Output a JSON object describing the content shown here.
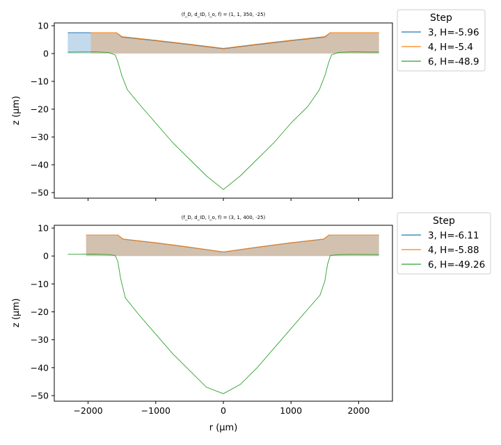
{
  "chart_data": [
    {
      "type": "line",
      "title": "(f_D, d_ID, l_o, f) = (1, 1, 350, -25)",
      "xlabel": "",
      "ylabel": "z (μm)",
      "xlim": [
        -2500,
        2500
      ],
      "ylim": [
        -52,
        11
      ],
      "xticks": [
        -2000,
        -1000,
        0,
        1000,
        2000
      ],
      "yticks": [
        10,
        0,
        -10,
        -20,
        -30,
        -40,
        -50
      ],
      "xtick_labels_visible": false,
      "grid": false,
      "legend": {
        "title": "Step",
        "placement": "outside-right-top"
      },
      "series": [
        {
          "name": "3, H=-5.96",
          "color": "#1f77b4",
          "filled": true,
          "x": [
            -2300,
            -1580,
            -1500,
            -1000,
            -500,
            0,
            500,
            1000,
            1500,
            1580,
            2300
          ],
          "y": [
            7.5,
            7.5,
            5.9,
            4.6,
            3.2,
            1.7,
            3.2,
            4.6,
            5.9,
            7.5,
            7.5
          ]
        },
        {
          "name": "4, H=-5.4",
          "color": "#ff7f0e",
          "filled": true,
          "x": [
            -1960,
            -1580,
            -1500,
            -1000,
            -500,
            0,
            500,
            1000,
            1500,
            1580,
            2300
          ],
          "y": [
            7.5,
            7.5,
            6.1,
            4.8,
            3.4,
            1.9,
            3.4,
            4.8,
            6.1,
            7.5,
            7.5
          ]
        },
        {
          "name": "6, H=-48.9",
          "color": "#2ca02c",
          "filled": false,
          "x": [
            -2300,
            -1900,
            -1700,
            -1600,
            -1560,
            -1500,
            -1420,
            -1250,
            -1000,
            -750,
            -500,
            -250,
            0,
            250,
            500,
            750,
            1000,
            1250,
            1420,
            1500,
            1560,
            1600,
            1700,
            1900,
            2300
          ],
          "y": [
            0.5,
            0.6,
            0.4,
            -0.5,
            -3,
            -8,
            -13,
            -18,
            -25,
            -32,
            -38,
            -44,
            -48.9,
            -44,
            -38,
            -32,
            -25,
            -19,
            -13,
            -8,
            -3,
            -0.5,
            0.4,
            0.6,
            0.5
          ]
        }
      ]
    },
    {
      "type": "line",
      "title": "(f_D, d_ID, l_o, f) = (3, 1, 400, -25)",
      "xlabel": "r (μm)",
      "ylabel": "z (μm)",
      "xlim": [
        -2500,
        2500
      ],
      "ylim": [
        -52,
        11
      ],
      "xticks": [
        -2000,
        -1000,
        0,
        1000,
        2000
      ],
      "yticks": [
        10,
        0,
        -10,
        -20,
        -30,
        -40,
        -50
      ],
      "xtick_labels_visible": true,
      "grid": false,
      "legend": {
        "title": "Step",
        "placement": "outside-right-top"
      },
      "series": [
        {
          "name": "3, H=-6.11",
          "color": "#1f77b4",
          "filled": true,
          "x": [
            -2030,
            -1560,
            -1480,
            -1000,
            -500,
            0,
            500,
            1000,
            1480,
            1560,
            2300
          ],
          "y": [
            7.5,
            7.5,
            6.0,
            4.7,
            3.1,
            1.4,
            3.1,
            4.7,
            6.0,
            7.5,
            7.5
          ]
        },
        {
          "name": "4, H=-5.88",
          "color": "#ff7f0e",
          "filled": true,
          "x": [
            -2030,
            -1560,
            -1480,
            -1000,
            -500,
            0,
            500,
            1000,
            1480,
            1560,
            2300
          ],
          "y": [
            7.5,
            7.5,
            6.1,
            4.8,
            3.2,
            1.5,
            3.2,
            4.8,
            6.1,
            7.5,
            7.5
          ]
        },
        {
          "name": "6, H=-49.26",
          "color": "#2ca02c",
          "filled": false,
          "x": [
            -2300,
            -1900,
            -1700,
            -1600,
            -1560,
            -1520,
            -1450,
            -1250,
            -1000,
            -750,
            -500,
            -250,
            0,
            250,
            500,
            750,
            1000,
            1250,
            1430,
            1500,
            1540,
            1580,
            1700,
            1900,
            2300
          ],
          "y": [
            0.6,
            0.7,
            0.5,
            0.2,
            -2,
            -8,
            -15,
            -21,
            -28,
            -35,
            -41,
            -47,
            -49.3,
            -46,
            -40,
            -33,
            -26,
            -19,
            -14,
            -9,
            -3,
            0.2,
            0.5,
            0.6,
            0.5
          ]
        }
      ]
    }
  ]
}
